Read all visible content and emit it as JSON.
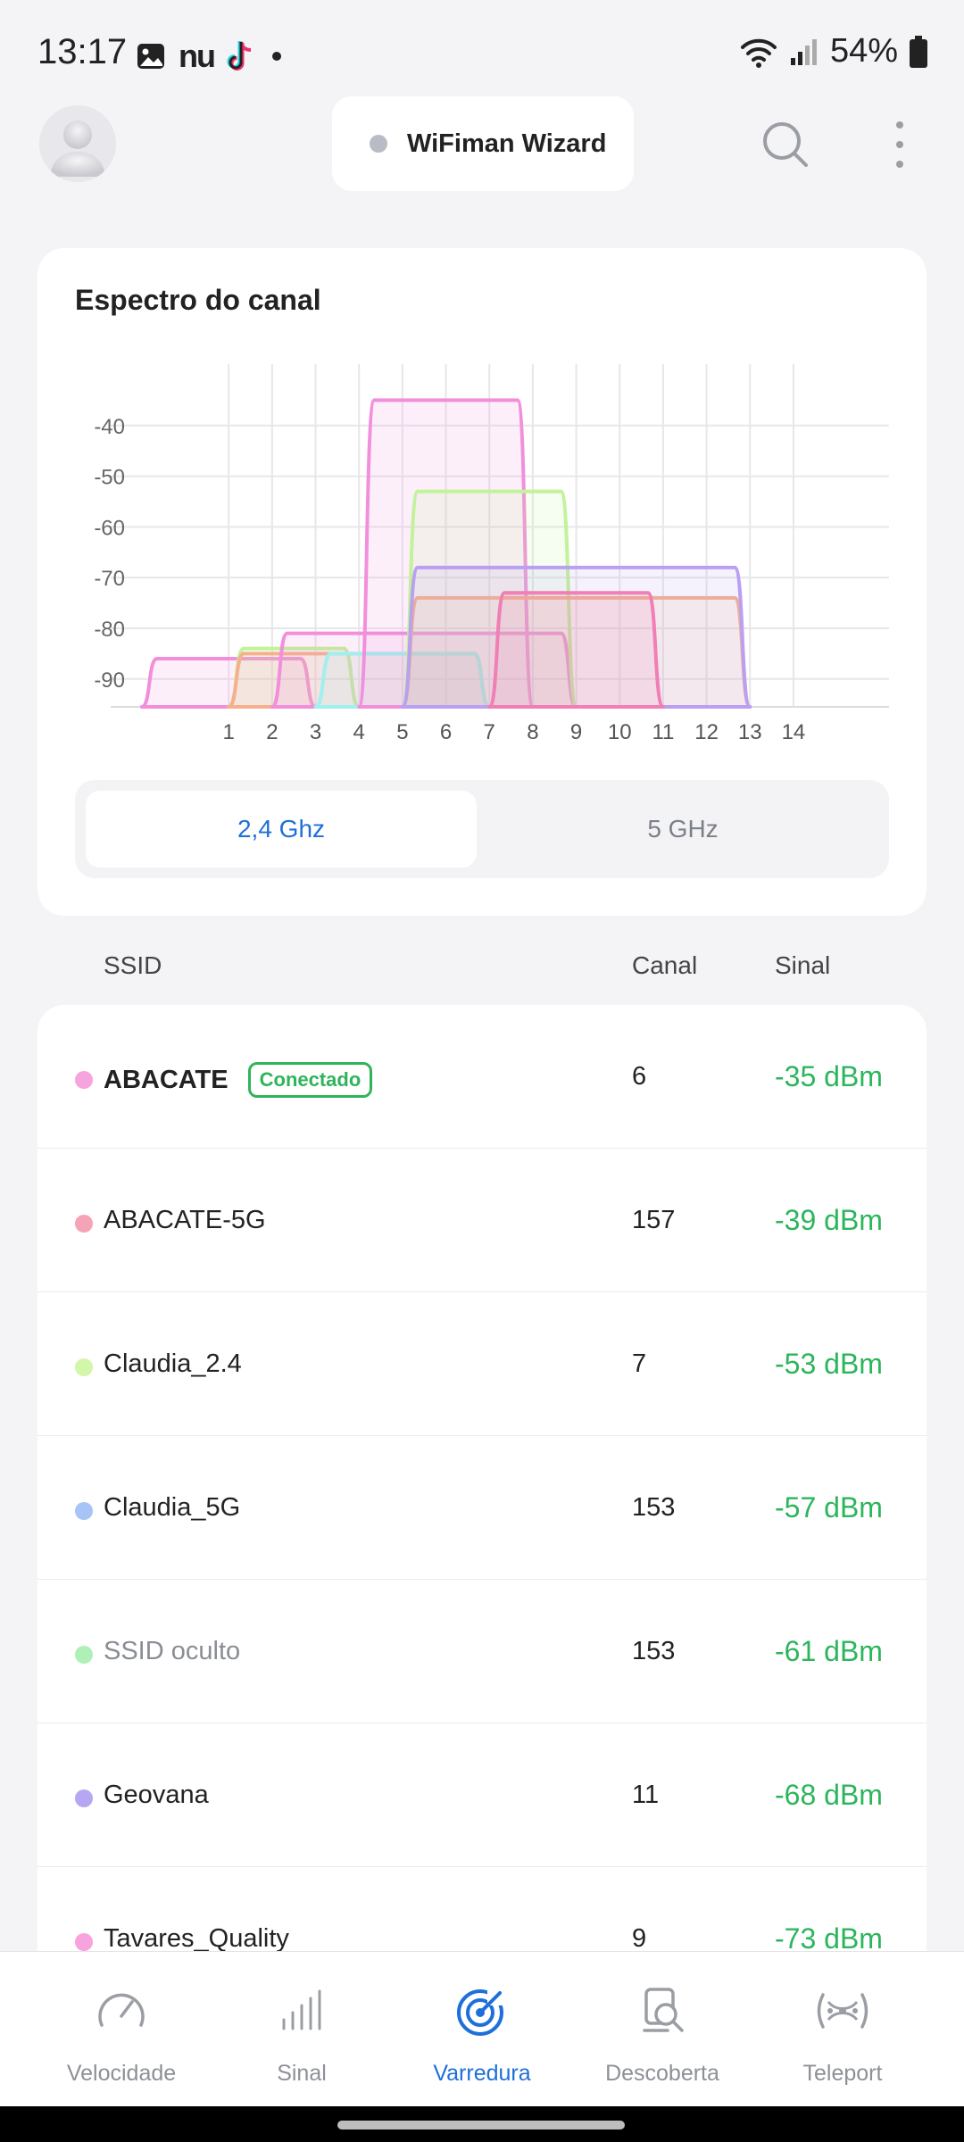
{
  "status_bar": {
    "time": "13:17",
    "battery": "54%",
    "notif_icons": [
      "image-icon",
      "nu-icon",
      "tiktok-icon",
      "dot-icon"
    ],
    "nu_text": "nu"
  },
  "top_bar": {
    "wizard_label": "WiFiman Wizard"
  },
  "spectrum": {
    "title": "Espectro do canal",
    "band_options": [
      "2,4 Ghz",
      "5 GHz"
    ],
    "selected_band": "2,4 Ghz"
  },
  "chart_data": {
    "type": "area",
    "title": "Espectro do canal",
    "xlabel": "",
    "ylabel": "",
    "x_ticks": [
      1,
      2,
      3,
      4,
      5,
      6,
      7,
      8,
      9,
      10,
      11,
      12,
      13,
      14
    ],
    "y_ticks": [
      -40,
      -50,
      -60,
      -70,
      -80,
      -90
    ],
    "xlim": [
      -1.1,
      16.2
    ],
    "ylim": [
      -95.5,
      -30
    ],
    "grid": true,
    "series": [
      {
        "color": "#f28fdc",
        "from": -1.0,
        "to": 3.0,
        "level": -86
      },
      {
        "color": "#c2f29a",
        "from": 1.0,
        "to": 4.0,
        "level": -84
      },
      {
        "color": "#f5b08c",
        "from": 1.0,
        "to": 7.0,
        "level": -85
      },
      {
        "color": "#f28fdc",
        "from": 2.0,
        "to": 9.0,
        "level": -81
      },
      {
        "color": "#9ff0ee",
        "from": 3.0,
        "to": 7.0,
        "level": -85
      },
      {
        "color": "#f28fdc",
        "from": 4.0,
        "to": 8.0,
        "level": -35
      },
      {
        "color": "#c2f29a",
        "from": 5.0,
        "to": 9.0,
        "level": -53
      },
      {
        "color": "#f5b08c",
        "from": 5.0,
        "to": 13.0,
        "level": -74
      },
      {
        "color": "#b9a0f2",
        "from": 5.0,
        "to": 13.0,
        "level": -68
      },
      {
        "color": "#ef7fb4",
        "from": 7.0,
        "to": 11.0,
        "level": -73
      }
    ]
  },
  "table": {
    "headers": {
      "ssid": "SSID",
      "canal": "Canal",
      "sinal": "Sinal"
    },
    "rows": [
      {
        "ssid": "ABACATE",
        "badge": "Conectado",
        "canal": "6",
        "sinal": "-35 dBm",
        "dot": "#f7a3de",
        "bold": true
      },
      {
        "ssid": "ABACATE-5G",
        "canal": "157",
        "sinal": "-39 dBm",
        "dot": "#f5a4b8"
      },
      {
        "ssid": "Claudia_2.4",
        "canal": "7",
        "sinal": "-53 dBm",
        "dot": "#d3f7a8"
      },
      {
        "ssid": "Claudia_5G",
        "canal": "153",
        "sinal": "-57 dBm",
        "dot": "#a8c3f5"
      },
      {
        "ssid": "SSID oculto",
        "canal": "153",
        "sinal": "-61 dBm",
        "dot": "#aef0b6",
        "muted": true
      },
      {
        "ssid": "Geovana",
        "canal": "11",
        "sinal": "-68 dBm",
        "dot": "#b7a7f2"
      },
      {
        "ssid": "Tavares_Quality",
        "canal": "9",
        "sinal": "-73 dBm",
        "dot": "#f7a3de"
      }
    ]
  },
  "bottom_nav": {
    "items": [
      {
        "label": "Velocidade",
        "icon": "speedometer-icon"
      },
      {
        "label": "Sinal",
        "icon": "signal-bars-icon"
      },
      {
        "label": "Varredura",
        "icon": "radar-scan-icon",
        "active": true
      },
      {
        "label": "Descoberta",
        "icon": "device-search-icon"
      },
      {
        "label": "Teleport",
        "icon": "teleport-icon"
      }
    ]
  },
  "colors": {
    "accent": "#1e6fd9",
    "signal_good": "#2db55d",
    "background": "#f4f4f6"
  }
}
